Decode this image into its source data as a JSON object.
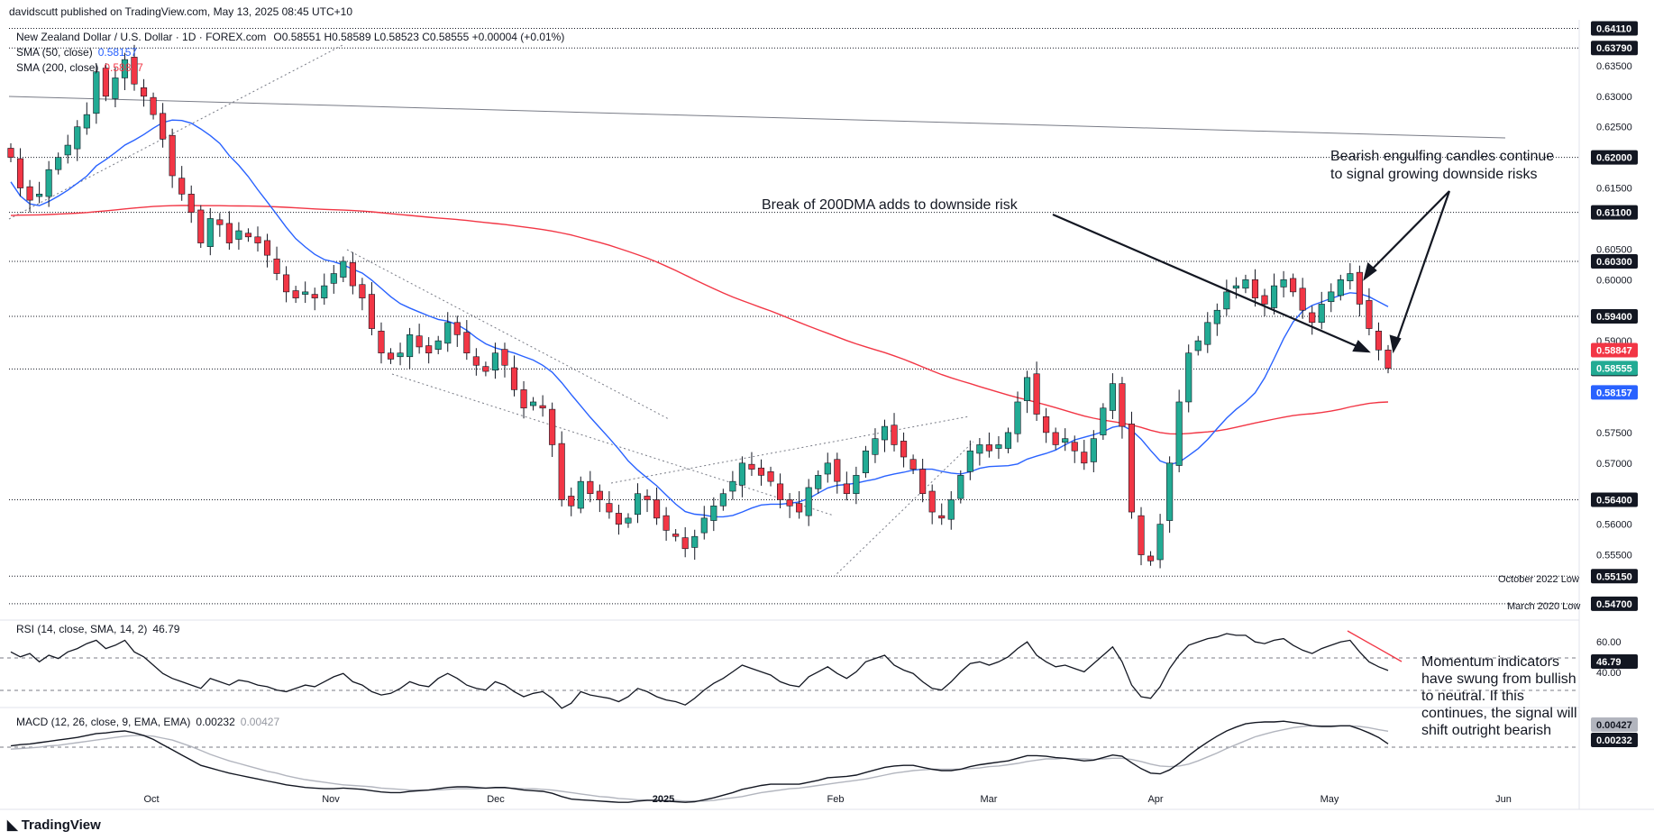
{
  "publisher_line": "davidscutt published on TradingView.com, May 13, 2025 08:45 UTC+10",
  "header": {
    "instrument": "New Zealand Dollar / U.S. Dollar · 1D · FOREX.com",
    "ohlc": "O0.58551 H0.58589 L0.58523 C0.58555 +0.00004 (+0.01%)",
    "sma50_label": "SMA (50, close)",
    "sma50_value": "0.58157",
    "sma200_label": "SMA (200, close)",
    "sma200_value": "0.58847",
    "rsi_label": "RSI (14, close, SMA, 14, 2)",
    "rsi_value": "46.79",
    "macd_label": "MACD (12, 26, close, 9, EMA, EMA)",
    "macd_value1": "0.00232",
    "macd_value2": "0.00427"
  },
  "colors": {
    "up": "#22ab94",
    "down": "#f23645",
    "sma50": "#2962ff",
    "sma200": "#f23645",
    "rsi_line": "#131722",
    "macd_line": "#131722",
    "signal_line": "#b2b5be",
    "badge_dark": "#131722",
    "badge_green": "#22ab94",
    "badge_red": "#f23645",
    "badge_blue": "#2962ff"
  },
  "watermark": "TradingView",
  "annotations": {
    "engulfing_line1": "Bearish engulfing candles continue",
    "engulfing_line2": "to signal growing downside risks",
    "dma_break": "Break of 200DMA adds to downside risk",
    "momentum_lines": [
      "Momentum indicators",
      "have swung from bullish",
      "to neutral. If this",
      "continues, the signal will",
      "shift outright bearish"
    ],
    "oct2022": "October 2022 Low",
    "mar2020": "March 2020 Low"
  },
  "chart_data": [
    {
      "type": "candlestick",
      "title": "New Zealand Dollar / U.S. Dollar · 1D · FOREX.com",
      "x_tick_labels": [
        "Oct",
        "Nov",
        "Dec",
        "2025",
        "Feb",
        "Mar",
        "Apr",
        "May",
        "Jun"
      ],
      "y_tick_labels": [
        "0.63500",
        "0.63000",
        "0.62500",
        "0.61500",
        "0.60500",
        "0.60000",
        "0.59000",
        "0.57500",
        "0.57000",
        "0.56000",
        "0.55500"
      ],
      "ylim": [
        0.5455,
        0.6425
      ],
      "horizontal_levels": [
        "0.64110",
        "0.63790",
        "0.62000",
        "0.61100",
        "0.60300",
        "0.59400",
        "0.58540",
        "0.56400",
        "0.55150",
        "0.54700"
      ],
      "last_price": "0.58555",
      "sma50_last": "0.58157",
      "sma200_last": "0.58847",
      "candles_close": [
        0.62,
        0.615,
        0.613,
        0.614,
        0.618,
        0.62,
        0.622,
        0.625,
        0.627,
        0.634,
        0.63,
        0.633,
        0.636,
        0.632,
        0.63,
        0.627,
        0.623,
        0.617,
        0.614,
        0.611,
        0.606,
        0.61,
        0.609,
        0.606,
        0.608,
        0.607,
        0.606,
        0.604,
        0.601,
        0.598,
        0.597,
        0.598,
        0.597,
        0.599,
        0.601,
        0.603,
        0.599,
        0.597,
        0.592,
        0.588,
        0.587,
        0.588,
        0.591,
        0.589,
        0.588,
        0.59,
        0.593,
        0.591,
        0.588,
        0.586,
        0.585,
        0.588,
        0.586,
        0.582,
        0.579,
        0.58,
        0.579,
        0.573,
        0.564,
        0.563,
        0.567,
        0.565,
        0.564,
        0.562,
        0.56,
        0.561,
        0.565,
        0.564,
        0.561,
        0.559,
        0.558,
        0.556,
        0.558,
        0.561,
        0.563,
        0.565,
        0.567,
        0.57,
        0.569,
        0.568,
        0.567,
        0.564,
        0.563,
        0.562,
        0.566,
        0.568,
        0.57,
        0.567,
        0.565,
        0.568,
        0.572,
        0.574,
        0.576,
        0.573,
        0.571,
        0.569,
        0.565,
        0.562,
        0.561,
        0.564,
        0.568,
        0.572,
        0.573,
        0.572,
        0.573,
        0.575,
        0.58,
        0.584,
        0.578,
        0.575,
        0.573,
        0.574,
        0.572,
        0.57,
        0.574,
        0.579,
        0.583,
        0.576,
        0.562,
        0.555,
        0.554,
        0.56,
        0.57,
        0.58,
        0.588,
        0.59,
        0.593,
        0.595,
        0.598,
        0.599,
        0.6,
        0.597,
        0.596,
        0.599,
        0.6,
        0.598,
        0.595,
        0.593,
        0.596,
        0.598,
        0.6,
        0.601,
        0.596,
        0.592,
        0.5885,
        0.5855
      ]
    },
    {
      "type": "line",
      "title": "RSI (14, close, SMA, 14, 2)",
      "y_tick_labels": [
        "60.00",
        "40.00"
      ],
      "ylim": [
        25,
        75
      ],
      "last_value": "46.79",
      "values": [
        58,
        55,
        57,
        52,
        56,
        54,
        58,
        60,
        63,
        65,
        60,
        62,
        65,
        58,
        55,
        50,
        45,
        42,
        40,
        38,
        36,
        42,
        40,
        38,
        41,
        40,
        38,
        37,
        35,
        34,
        36,
        38,
        37,
        40,
        43,
        45,
        40,
        38,
        34,
        32,
        33,
        36,
        40,
        38,
        37,
        42,
        45,
        42,
        38,
        36,
        35,
        40,
        38,
        34,
        31,
        33,
        34,
        30,
        24,
        27,
        34,
        32,
        31,
        30,
        28,
        31,
        36,
        34,
        31,
        29,
        28,
        26,
        30,
        35,
        39,
        42,
        46,
        50,
        48,
        46,
        44,
        40,
        38,
        37,
        43,
        46,
        49,
        45,
        42,
        46,
        52,
        54,
        56,
        50,
        47,
        45,
        40,
        36,
        35,
        40,
        46,
        51,
        52,
        50,
        52,
        55,
        60,
        64,
        56,
        52,
        49,
        50,
        48,
        46,
        51,
        56,
        61,
        52,
        38,
        31,
        30,
        37,
        48,
        56,
        62,
        64,
        66,
        67,
        69,
        68,
        68,
        64,
        63,
        65,
        66,
        62,
        59,
        57,
        60,
        62,
        64,
        65,
        58,
        52,
        49,
        46.79
      ]
    },
    {
      "type": "line",
      "title": "MACD (12, 26, close, 9, EMA, EMA)",
      "last_macd": "0.00232",
      "last_signal": "0.00427",
      "series": [
        {
          "name": "MACD",
          "values": [
            0.002,
            0.0022,
            0.0023,
            0.0025,
            0.0027,
            0.0029,
            0.0031,
            0.0033,
            0.0036,
            0.0039,
            0.004,
            0.0042,
            0.0043,
            0.004,
            0.0036,
            0.003,
            0.0022,
            0.0014,
            0.0006,
            -0.0002,
            -0.001,
            -0.0014,
            -0.0018,
            -0.0022,
            -0.0025,
            -0.0028,
            -0.0031,
            -0.0034,
            -0.0037,
            -0.004,
            -0.0042,
            -0.0044,
            -0.0045,
            -0.0046,
            -0.0046,
            -0.0045,
            -0.0046,
            -0.0047,
            -0.0049,
            -0.0051,
            -0.0052,
            -0.0052,
            -0.005,
            -0.0049,
            -0.0048,
            -0.0046,
            -0.0044,
            -0.0043,
            -0.0043,
            -0.0044,
            -0.0045,
            -0.0044,
            -0.0044,
            -0.0046,
            -0.0048,
            -0.0049,
            -0.005,
            -0.0053,
            -0.0058,
            -0.0062,
            -0.0063,
            -0.0064,
            -0.0065,
            -0.0066,
            -0.0067,
            -0.0067,
            -0.0065,
            -0.0064,
            -0.0064,
            -0.0065,
            -0.0066,
            -0.0067,
            -0.0066,
            -0.0063,
            -0.006,
            -0.0056,
            -0.0052,
            -0.0047,
            -0.0044,
            -0.0041,
            -0.0039,
            -0.0039,
            -0.0039,
            -0.0039,
            -0.0036,
            -0.0033,
            -0.0029,
            -0.0028,
            -0.0027,
            -0.0025,
            -0.0021,
            -0.0017,
            -0.0013,
            -0.0011,
            -0.001,
            -0.001,
            -0.0013,
            -0.0016,
            -0.0018,
            -0.0018,
            -0.0016,
            -0.0012,
            -0.0009,
            -0.0007,
            -0.0005,
            -0.0003,
            0.0001,
            0.0005,
            0.0005,
            0.0004,
            0.0002,
            0.0001,
            -0.0001,
            -0.0003,
            -0.0002,
            0.0002,
            0.0006,
            0.0004,
            -0.0006,
            -0.0015,
            -0.0022,
            -0.0023,
            -0.0017,
            -0.0007,
            0.0005,
            0.0016,
            0.0026,
            0.0035,
            0.0043,
            0.0049,
            0.0054,
            0.0056,
            0.0057,
            0.0057,
            0.0058,
            0.0056,
            0.0054,
            0.0051,
            0.005,
            0.005,
            0.0051,
            0.0051,
            0.0046,
            0.004,
            0.0033,
            0.00232
          ]
        },
        {
          "name": "Signal",
          "values": [
            0.0015,
            0.0016,
            0.0017,
            0.0018,
            0.002,
            0.0021,
            0.0023,
            0.0025,
            0.0027,
            0.0029,
            0.0031,
            0.0033,
            0.0035,
            0.0036,
            0.0036,
            0.0035,
            0.0032,
            0.0029,
            0.0024,
            0.0019,
            0.0013,
            0.0007,
            0.0002,
            -0.0003,
            -0.0007,
            -0.0011,
            -0.0015,
            -0.0019,
            -0.0022,
            -0.0026,
            -0.0029,
            -0.0032,
            -0.0034,
            -0.0036,
            -0.0038,
            -0.004,
            -0.0041,
            -0.0042,
            -0.0043,
            -0.0045,
            -0.0046,
            -0.0047,
            -0.0048,
            -0.0048,
            -0.0048,
            -0.0048,
            -0.0047,
            -0.0046,
            -0.0046,
            -0.0046,
            -0.0045,
            -0.0045,
            -0.0045,
            -0.0045,
            -0.0046,
            -0.0046,
            -0.0047,
            -0.0048,
            -0.005,
            -0.0052,
            -0.0054,
            -0.0056,
            -0.0058,
            -0.0059,
            -0.0061,
            -0.0062,
            -0.0063,
            -0.0063,
            -0.0064,
            -0.0064,
            -0.0064,
            -0.0065,
            -0.0065,
            -0.0065,
            -0.0064,
            -0.0062,
            -0.006,
            -0.0058,
            -0.0055,
            -0.0052,
            -0.005,
            -0.0048,
            -0.0046,
            -0.0045,
            -0.0043,
            -0.0041,
            -0.0039,
            -0.0037,
            -0.0035,
            -0.0033,
            -0.0031,
            -0.0028,
            -0.0025,
            -0.0022,
            -0.002,
            -0.0018,
            -0.0017,
            -0.0016,
            -0.0016,
            -0.0016,
            -0.0016,
            -0.0015,
            -0.0014,
            -0.0012,
            -0.0011,
            -0.0009,
            -0.0007,
            -0.0004,
            -0.0002,
            0.0,
            0.0,
            0.0001,
            0.0,
            0.0,
            -0.0001,
            0.0,
            0.0001,
            0.0001,
            -0.0001,
            -0.0004,
            -0.0008,
            -0.0011,
            -0.0012,
            -0.0011,
            -0.0008,
            -0.0003,
            0.0003,
            0.0009,
            0.0016,
            0.0022,
            0.0028,
            0.0034,
            0.0038,
            0.0042,
            0.0045,
            0.0048,
            0.005,
            0.0051,
            0.0051,
            0.0051,
            0.0051,
            0.0051,
            0.005,
            0.0048,
            0.0045,
            0.00427
          ]
        }
      ]
    }
  ]
}
